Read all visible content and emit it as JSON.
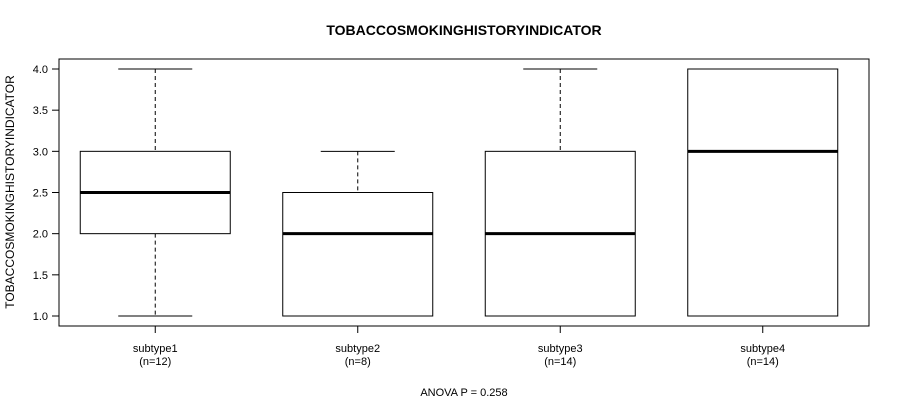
{
  "chart_data": {
    "type": "boxplot",
    "title": "TOBACCOSMOKINGHISTORYINDICATOR",
    "ylabel": "TOBACCOSMOKINGHISTORYINDICATOR",
    "xlabel": "",
    "ylim": [
      0.9,
      4.1
    ],
    "yticks": [
      "1.0",
      "1.5",
      "2.0",
      "2.5",
      "3.0",
      "3.5",
      "4.0"
    ],
    "grid": false,
    "categories": [
      {
        "label": "subtype1",
        "n_label": "(n=12)",
        "min": 1.0,
        "q1": 2.0,
        "median": 2.5,
        "q3": 3.0,
        "max": 4.0
      },
      {
        "label": "subtype2",
        "n_label": "(n=8)",
        "min": 1.0,
        "q1": 1.0,
        "median": 2.0,
        "q3": 2.5,
        "max": 3.0
      },
      {
        "label": "subtype3",
        "n_label": "(n=14)",
        "min": 1.0,
        "q1": 1.0,
        "median": 2.0,
        "q3": 3.0,
        "max": 4.0
      },
      {
        "label": "subtype4",
        "n_label": "(n=14)",
        "min": 1.0,
        "q1": 1.0,
        "median": 3.0,
        "q3": 4.0,
        "max": 4.0
      }
    ],
    "footer": "ANOVA P = 0.258"
  }
}
